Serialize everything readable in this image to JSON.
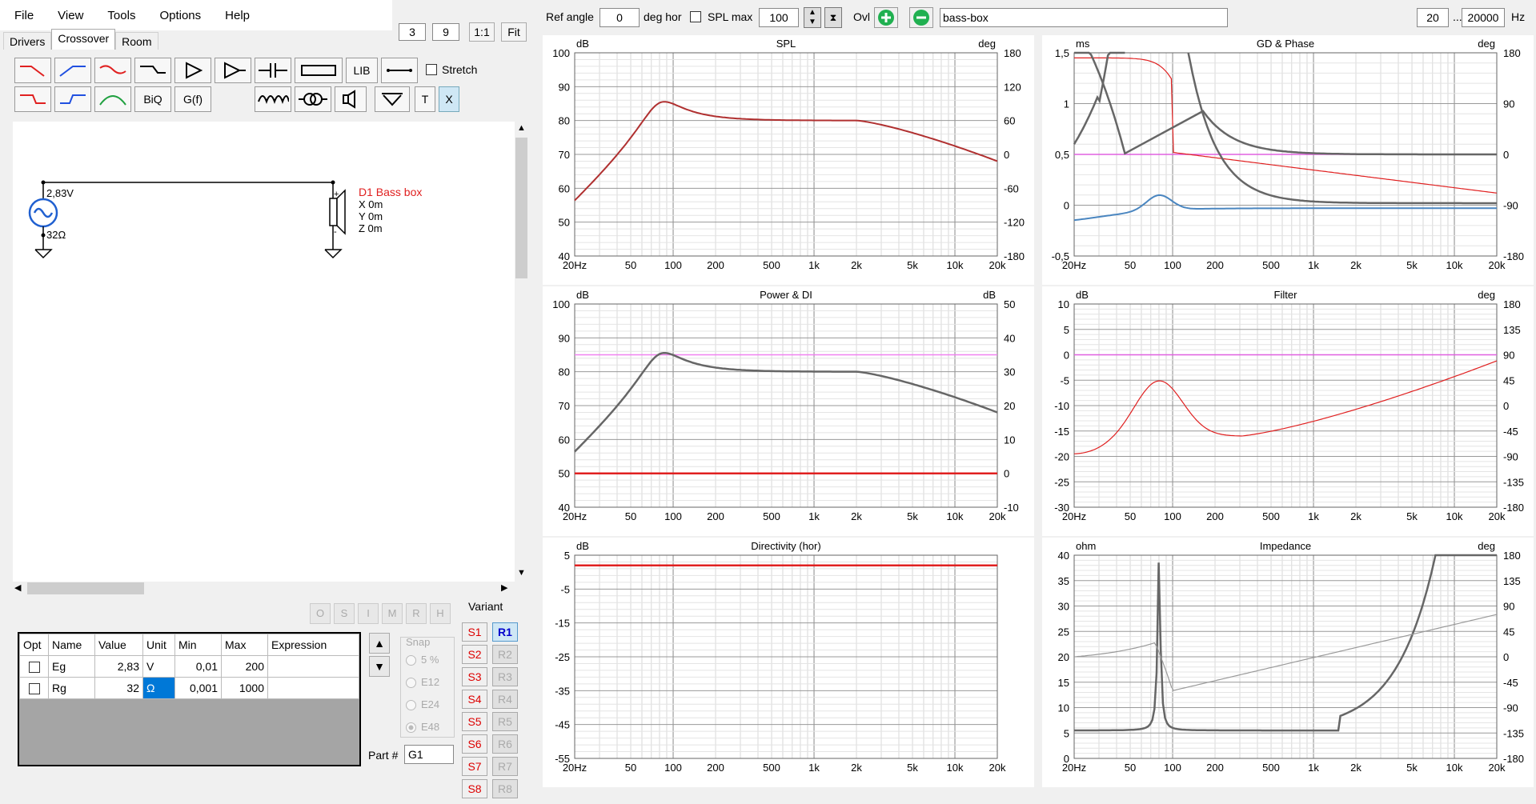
{
  "menu": [
    "File",
    "View",
    "Tools",
    "Options",
    "Help"
  ],
  "tabs": [
    "Drivers",
    "Crossover",
    "Room"
  ],
  "zoom": {
    "a": "3",
    "b": "9",
    "one_to_one": "1:1",
    "fit": "Fit"
  },
  "toolbar": {
    "lib": "LIB",
    "biq": "BiQ",
    "gf": "G(f)",
    "t": "T",
    "x": "X",
    "stretch": "Stretch"
  },
  "schematic": {
    "voltage": "2,83V",
    "resistance": "32Ω",
    "driver_name": "D1 Bass box",
    "x": "X 0m",
    "y": "Y 0m",
    "z": "Z 0m"
  },
  "opt_buttons": [
    "O",
    "S",
    "I",
    "M",
    "R",
    "H"
  ],
  "params": {
    "headers": [
      "Opt",
      "Name",
      "Value",
      "Unit",
      "Min",
      "Max",
      "Expression"
    ],
    "rows": [
      {
        "name": "Eg",
        "value": "2,83",
        "unit": "V",
        "min": "0,01",
        "max": "200",
        "expr": ""
      },
      {
        "name": "Rg",
        "value": "32",
        "unit": "Ω",
        "min": "0,001",
        "max": "1000",
        "expr": ""
      }
    ]
  },
  "snap": {
    "title": "Snap",
    "options": [
      "5 %",
      "E12",
      "E24",
      "E48"
    ]
  },
  "part_label": "Part #",
  "part_value": "G1",
  "variant": {
    "title": "Variant",
    "s": [
      "S1",
      "S2",
      "S3",
      "S4",
      "S5",
      "S6",
      "S7",
      "S8"
    ],
    "r": [
      "R1",
      "R2",
      "R3",
      "R4",
      "R5",
      "R6",
      "R7",
      "R8"
    ]
  },
  "topbar": {
    "ref_angle_label": "Ref angle",
    "ref_angle": "0",
    "deg_hor": "deg hor",
    "spl_max_label": "SPL max",
    "spl_max": "100",
    "ovl": "Ovl",
    "name": "bass-box",
    "f_min": "20",
    "dots": "...",
    "f_max": "20000",
    "hz": "Hz"
  },
  "colors": {
    "red": "#e02020",
    "darkred": "#b03030",
    "gray": "#666666",
    "blue": "#4a86c0",
    "magenta": "#e060e0",
    "pink": "#f080f0"
  },
  "xticks": [
    "20Hz",
    "50",
    "100",
    "200",
    "500",
    "1k",
    "2k",
    "5k",
    "10k",
    "20k"
  ],
  "charts": [
    {
      "title": "SPL",
      "lunit": "dB",
      "runit": "deg",
      "lticks": [
        "100",
        "90",
        "80",
        "70",
        "60",
        "50",
        "40"
      ],
      "rticks": [
        "180",
        "120",
        "60",
        "0",
        "-60",
        "-120",
        "-180"
      ]
    },
    {
      "title": "GD & Phase",
      "lunit": "ms",
      "runit": "deg",
      "lticks": [
        "1,5",
        "1",
        "0,5",
        "0",
        "-0,5"
      ],
      "rticks": [
        "180",
        "90",
        "0",
        "-90",
        "-180"
      ]
    },
    {
      "title": "Power & DI",
      "lunit": "dB",
      "runit": "dB",
      "lticks": [
        "100",
        "90",
        "80",
        "70",
        "60",
        "50",
        "40"
      ],
      "rticks": [
        "50",
        "40",
        "30",
        "20",
        "10",
        "0",
        "-10"
      ]
    },
    {
      "title": "Filter",
      "lunit": "dB",
      "runit": "deg",
      "lticks": [
        "10",
        "5",
        "0",
        "-5",
        "-10",
        "-15",
        "-20",
        "-25",
        "-30"
      ],
      "rticks": [
        "180",
        "135",
        "90",
        "45",
        "0",
        "-45",
        "-90",
        "-135",
        "-180"
      ]
    },
    {
      "title": "Directivity (hor)",
      "lunit": "dB",
      "runit": "",
      "lticks": [
        "5",
        "-5",
        "-15",
        "-25",
        "-35",
        "-45",
        "-55"
      ],
      "rticks": []
    },
    {
      "title": "Impedance",
      "lunit": "ohm",
      "runit": "deg",
      "lticks": [
        "40",
        "35",
        "30",
        "25",
        "20",
        "15",
        "10",
        "5",
        "0"
      ],
      "rticks": [
        "180",
        "135",
        "90",
        "45",
        "0",
        "-45",
        "-90",
        "-135",
        "-180"
      ]
    }
  ]
}
